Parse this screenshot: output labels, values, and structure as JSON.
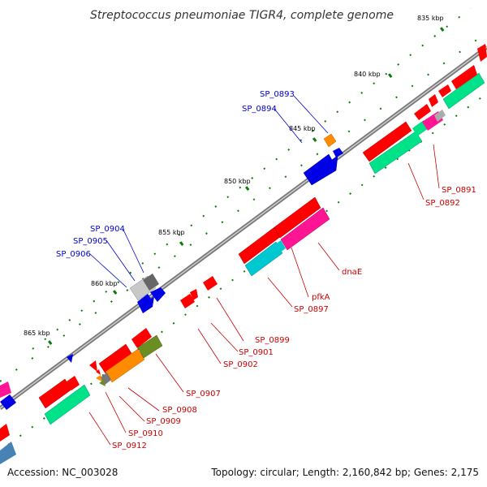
{
  "title": "Streptococcus pneumoniae TIGR4, complete genome",
  "footer": {
    "accession": "Accession: NC_003028",
    "stats": "Topology: circular; Length: 2,160,842 bp; Genes: 2,175"
  },
  "colors": {
    "backbone": "#808080",
    "forward_label": "#0000cc",
    "reverse_label": "#cc0000",
    "tick": "#0a7a0a"
  },
  "ticks": [
    "835 kbp",
    "840 kbp",
    "845 kbp",
    "850 kbp",
    "855 kbp",
    "860 kbp",
    "865 kbp"
  ],
  "forward_labels": [
    "SP_0893",
    "SP_0894",
    "SP_0904",
    "SP_0905",
    "SP_0906"
  ],
  "reverse_labels": [
    "SP_0891",
    "SP_0892",
    "dnaE",
    "pfkA",
    "SP_0897",
    "SP_0899",
    "SP_0901",
    "SP_0902",
    "SP_0907",
    "SP_0908",
    "SP_0909",
    "SP_0910",
    "SP_0912"
  ]
}
